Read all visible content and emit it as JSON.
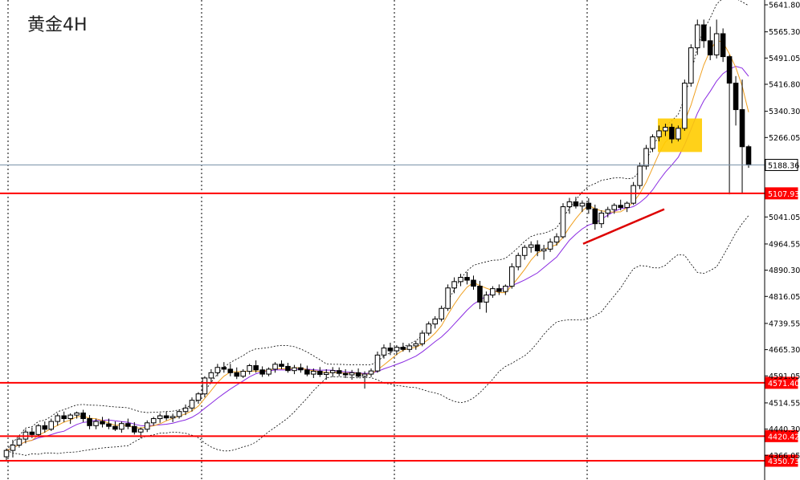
{
  "chart_data": {
    "type": "candlestick",
    "title": "黄金4H",
    "y_axis": {
      "position": "right",
      "ticks": [
        "5641.80",
        "5565.30",
        "5491.05",
        "5416.80",
        "5340.30",
        "5266.05",
        "5188.36",
        "5041.05",
        "4964.55",
        "4890.30",
        "4816.05",
        "4739.55",
        "4665.30",
        "4591.05",
        "4514.55",
        "4440.30",
        "4366.05"
      ],
      "ylim": [
        4330,
        5645
      ]
    },
    "grid": {
      "horizontal": false,
      "vertical_dashed": true
    },
    "price_lines": [
      {
        "label": "5188.36",
        "value": 5188.36,
        "color": "#7a93aa",
        "style": "current"
      },
      {
        "label": "5107.93",
        "value": 5107.93,
        "color": "#ff0000",
        "style": "level"
      },
      {
        "label": "4571.40",
        "value": 4571.4,
        "color": "#ff0000",
        "style": "level"
      },
      {
        "label": "4420.42",
        "value": 4420.42,
        "color": "#ff0000",
        "style": "level"
      },
      {
        "label": "4350.73",
        "value": 4350.73,
        "color": "#ff0000",
        "style": "level"
      }
    ],
    "indicators": [
      {
        "type": "bollinger_bands",
        "style": "dashed",
        "color": "#000000"
      },
      {
        "type": "moving_average",
        "color": "#f0a020"
      },
      {
        "type": "moving_average",
        "color": "#8a2be2"
      }
    ],
    "annotations": [
      {
        "type": "trendline",
        "color": "#dd0000",
        "from_value": 4965,
        "to_value": 5063
      },
      {
        "type": "highlight_box",
        "color": "#ffcc00",
        "from_value": 5225,
        "to_value": 5320
      }
    ],
    "candles": [
      {
        "o": 4362,
        "h": 4385,
        "l": 4350,
        "c": 4380
      },
      {
        "o": 4380,
        "h": 4410,
        "l": 4360,
        "c": 4395
      },
      {
        "o": 4395,
        "h": 4420,
        "l": 4388,
        "c": 4412
      },
      {
        "o": 4412,
        "h": 4440,
        "l": 4400,
        "c": 4432
      },
      {
        "o": 4432,
        "h": 4445,
        "l": 4415,
        "c": 4425
      },
      {
        "o": 4425,
        "h": 4455,
        "l": 4418,
        "c": 4450
      },
      {
        "o": 4450,
        "h": 4462,
        "l": 4430,
        "c": 4440
      },
      {
        "o": 4440,
        "h": 4470,
        "l": 4435,
        "c": 4462
      },
      {
        "o": 4462,
        "h": 4485,
        "l": 4450,
        "c": 4478
      },
      {
        "o": 4478,
        "h": 4490,
        "l": 4460,
        "c": 4470
      },
      {
        "o": 4470,
        "h": 4485,
        "l": 4455,
        "c": 4480
      },
      {
        "o": 4480,
        "h": 4490,
        "l": 4470,
        "c": 4486
      },
      {
        "o": 4486,
        "h": 4495,
        "l": 4460,
        "c": 4470
      },
      {
        "o": 4470,
        "h": 4480,
        "l": 4440,
        "c": 4450
      },
      {
        "o": 4450,
        "h": 4470,
        "l": 4440,
        "c": 4462
      },
      {
        "o": 4462,
        "h": 4475,
        "l": 4445,
        "c": 4455
      },
      {
        "o": 4455,
        "h": 4470,
        "l": 4440,
        "c": 4448
      },
      {
        "o": 4448,
        "h": 4462,
        "l": 4435,
        "c": 4440
      },
      {
        "o": 4440,
        "h": 4462,
        "l": 4430,
        "c": 4456
      },
      {
        "o": 4456,
        "h": 4470,
        "l": 4440,
        "c": 4448
      },
      {
        "o": 4448,
        "h": 4460,
        "l": 4425,
        "c": 4432
      },
      {
        "o": 4432,
        "h": 4445,
        "l": 4415,
        "c": 4440
      },
      {
        "o": 4440,
        "h": 4465,
        "l": 4432,
        "c": 4458
      },
      {
        "o": 4458,
        "h": 4475,
        "l": 4450,
        "c": 4470
      },
      {
        "o": 4470,
        "h": 4485,
        "l": 4458,
        "c": 4478
      },
      {
        "o": 4478,
        "h": 4490,
        "l": 4465,
        "c": 4472
      },
      {
        "o": 4472,
        "h": 4484,
        "l": 4460,
        "c": 4476
      },
      {
        "o": 4476,
        "h": 4495,
        "l": 4470,
        "c": 4490
      },
      {
        "o": 4490,
        "h": 4510,
        "l": 4480,
        "c": 4500
      },
      {
        "o": 4500,
        "h": 4530,
        "l": 4490,
        "c": 4522
      },
      {
        "o": 4522,
        "h": 4545,
        "l": 4512,
        "c": 4540
      },
      {
        "o": 4540,
        "h": 4590,
        "l": 4530,
        "c": 4585
      },
      {
        "o": 4585,
        "h": 4610,
        "l": 4570,
        "c": 4600
      },
      {
        "o": 4600,
        "h": 4625,
        "l": 4590,
        "c": 4615
      },
      {
        "o": 4615,
        "h": 4630,
        "l": 4600,
        "c": 4610
      },
      {
        "o": 4610,
        "h": 4625,
        "l": 4590,
        "c": 4600
      },
      {
        "o": 4600,
        "h": 4615,
        "l": 4582,
        "c": 4590
      },
      {
        "o": 4590,
        "h": 4610,
        "l": 4585,
        "c": 4604
      },
      {
        "o": 4604,
        "h": 4625,
        "l": 4595,
        "c": 4620
      },
      {
        "o": 4620,
        "h": 4635,
        "l": 4600,
        "c": 4608
      },
      {
        "o": 4608,
        "h": 4618,
        "l": 4588,
        "c": 4596
      },
      {
        "o": 4596,
        "h": 4615,
        "l": 4590,
        "c": 4610
      },
      {
        "o": 4610,
        "h": 4630,
        "l": 4600,
        "c": 4624
      },
      {
        "o": 4624,
        "h": 4635,
        "l": 4610,
        "c": 4618
      },
      {
        "o": 4618,
        "h": 4628,
        "l": 4600,
        "c": 4606
      },
      {
        "o": 4606,
        "h": 4622,
        "l": 4596,
        "c": 4614
      },
      {
        "o": 4614,
        "h": 4626,
        "l": 4600,
        "c": 4608
      },
      {
        "o": 4608,
        "h": 4620,
        "l": 4590,
        "c": 4596
      },
      {
        "o": 4596,
        "h": 4612,
        "l": 4585,
        "c": 4604
      },
      {
        "o": 4604,
        "h": 4616,
        "l": 4588,
        "c": 4595
      },
      {
        "o": 4595,
        "h": 4610,
        "l": 4580,
        "c": 4600
      },
      {
        "o": 4600,
        "h": 4616,
        "l": 4588,
        "c": 4606
      },
      {
        "o": 4606,
        "h": 4615,
        "l": 4590,
        "c": 4598
      },
      {
        "o": 4598,
        "h": 4610,
        "l": 4585,
        "c": 4594
      },
      {
        "o": 4594,
        "h": 4608,
        "l": 4580,
        "c": 4600
      },
      {
        "o": 4600,
        "h": 4612,
        "l": 4586,
        "c": 4590
      },
      {
        "o": 4590,
        "h": 4604,
        "l": 4555,
        "c": 4596
      },
      {
        "o": 4596,
        "h": 4612,
        "l": 4588,
        "c": 4605
      },
      {
        "o": 4605,
        "h": 4660,
        "l": 4600,
        "c": 4650
      },
      {
        "o": 4650,
        "h": 4680,
        "l": 4640,
        "c": 4670
      },
      {
        "o": 4670,
        "h": 4685,
        "l": 4650,
        "c": 4662
      },
      {
        "o": 4662,
        "h": 4678,
        "l": 4650,
        "c": 4672
      },
      {
        "o": 4672,
        "h": 4685,
        "l": 4660,
        "c": 4666
      },
      {
        "o": 4666,
        "h": 4680,
        "l": 4658,
        "c": 4676
      },
      {
        "o": 4676,
        "h": 4690,
        "l": 4665,
        "c": 4682
      },
      {
        "o": 4682,
        "h": 4720,
        "l": 4675,
        "c": 4712
      },
      {
        "o": 4712,
        "h": 4745,
        "l": 4705,
        "c": 4738
      },
      {
        "o": 4738,
        "h": 4760,
        "l": 4725,
        "c": 4752
      },
      {
        "o": 4752,
        "h": 4790,
        "l": 4745,
        "c": 4782
      },
      {
        "o": 4782,
        "h": 4850,
        "l": 4775,
        "c": 4840
      },
      {
        "o": 4840,
        "h": 4870,
        "l": 4825,
        "c": 4858
      },
      {
        "o": 4858,
        "h": 4880,
        "l": 4845,
        "c": 4870
      },
      {
        "o": 4870,
        "h": 4885,
        "l": 4850,
        "c": 4862
      },
      {
        "o": 4862,
        "h": 4875,
        "l": 4835,
        "c": 4845
      },
      {
        "o": 4845,
        "h": 4860,
        "l": 4780,
        "c": 4800
      },
      {
        "o": 4800,
        "h": 4830,
        "l": 4770,
        "c": 4820
      },
      {
        "o": 4820,
        "h": 4845,
        "l": 4812,
        "c": 4838
      },
      {
        "o": 4838,
        "h": 4850,
        "l": 4820,
        "c": 4830
      },
      {
        "o": 4830,
        "h": 4850,
        "l": 4820,
        "c": 4845
      },
      {
        "o": 4845,
        "h": 4910,
        "l": 4838,
        "c": 4900
      },
      {
        "o": 4900,
        "h": 4940,
        "l": 4890,
        "c": 4932
      },
      {
        "o": 4932,
        "h": 4962,
        "l": 4920,
        "c": 4955
      },
      {
        "o": 4955,
        "h": 4972,
        "l": 4940,
        "c": 4962
      },
      {
        "o": 4962,
        "h": 4975,
        "l": 4930,
        "c": 4945
      },
      {
        "o": 4945,
        "h": 4962,
        "l": 4920,
        "c": 4950
      },
      {
        "o": 4950,
        "h": 4980,
        "l": 4942,
        "c": 4970
      },
      {
        "o": 4970,
        "h": 4995,
        "l": 4960,
        "c": 4985
      },
      {
        "o": 4985,
        "h": 5080,
        "l": 4980,
        "c": 5070
      },
      {
        "o": 5070,
        "h": 5095,
        "l": 5050,
        "c": 5084
      },
      {
        "o": 5084,
        "h": 5098,
        "l": 5065,
        "c": 5072
      },
      {
        "o": 5072,
        "h": 5088,
        "l": 5055,
        "c": 5080
      },
      {
        "o": 5080,
        "h": 5094,
        "l": 5050,
        "c": 5064
      },
      {
        "o": 5064,
        "h": 5076,
        "l": 5005,
        "c": 5022
      },
      {
        "o": 5022,
        "h": 5060,
        "l": 5010,
        "c": 5052
      },
      {
        "o": 5052,
        "h": 5070,
        "l": 5040,
        "c": 5062
      },
      {
        "o": 5062,
        "h": 5080,
        "l": 5050,
        "c": 5074
      },
      {
        "o": 5074,
        "h": 5090,
        "l": 5060,
        "c": 5068
      },
      {
        "o": 5068,
        "h": 5085,
        "l": 5055,
        "c": 5080
      },
      {
        "o": 5080,
        "h": 5140,
        "l": 5075,
        "c": 5130
      },
      {
        "o": 5130,
        "h": 5195,
        "l": 5120,
        "c": 5185
      },
      {
        "o": 5185,
        "h": 5245,
        "l": 5175,
        "c": 5235
      },
      {
        "o": 5235,
        "h": 5275,
        "l": 5225,
        "c": 5268
      },
      {
        "o": 5268,
        "h": 5300,
        "l": 5255,
        "c": 5285
      },
      {
        "o": 5285,
        "h": 5305,
        "l": 5270,
        "c": 5295
      },
      {
        "o": 5295,
        "h": 5305,
        "l": 5250,
        "c": 5262
      },
      {
        "o": 5262,
        "h": 5300,
        "l": 5255,
        "c": 5292
      },
      {
        "o": 5292,
        "h": 5430,
        "l": 5285,
        "c": 5420
      },
      {
        "o": 5420,
        "h": 5530,
        "l": 5410,
        "c": 5520
      },
      {
        "o": 5520,
        "h": 5600,
        "l": 5500,
        "c": 5585
      },
      {
        "o": 5585,
        "h": 5600,
        "l": 5520,
        "c": 5540
      },
      {
        "o": 5540,
        "h": 5580,
        "l": 5485,
        "c": 5500
      },
      {
        "o": 5500,
        "h": 5600,
        "l": 5490,
        "c": 5560
      },
      {
        "o": 5560,
        "h": 5575,
        "l": 5480,
        "c": 5495
      },
      {
        "o": 5495,
        "h": 5500,
        "l": 5105,
        "c": 5420
      },
      {
        "o": 5420,
        "h": 5440,
        "l": 5300,
        "c": 5345
      },
      {
        "o": 5345,
        "h": 5430,
        "l": 5108,
        "c": 5240
      },
      {
        "o": 5240,
        "h": 5245,
        "l": 5180,
        "c": 5188
      }
    ]
  }
}
